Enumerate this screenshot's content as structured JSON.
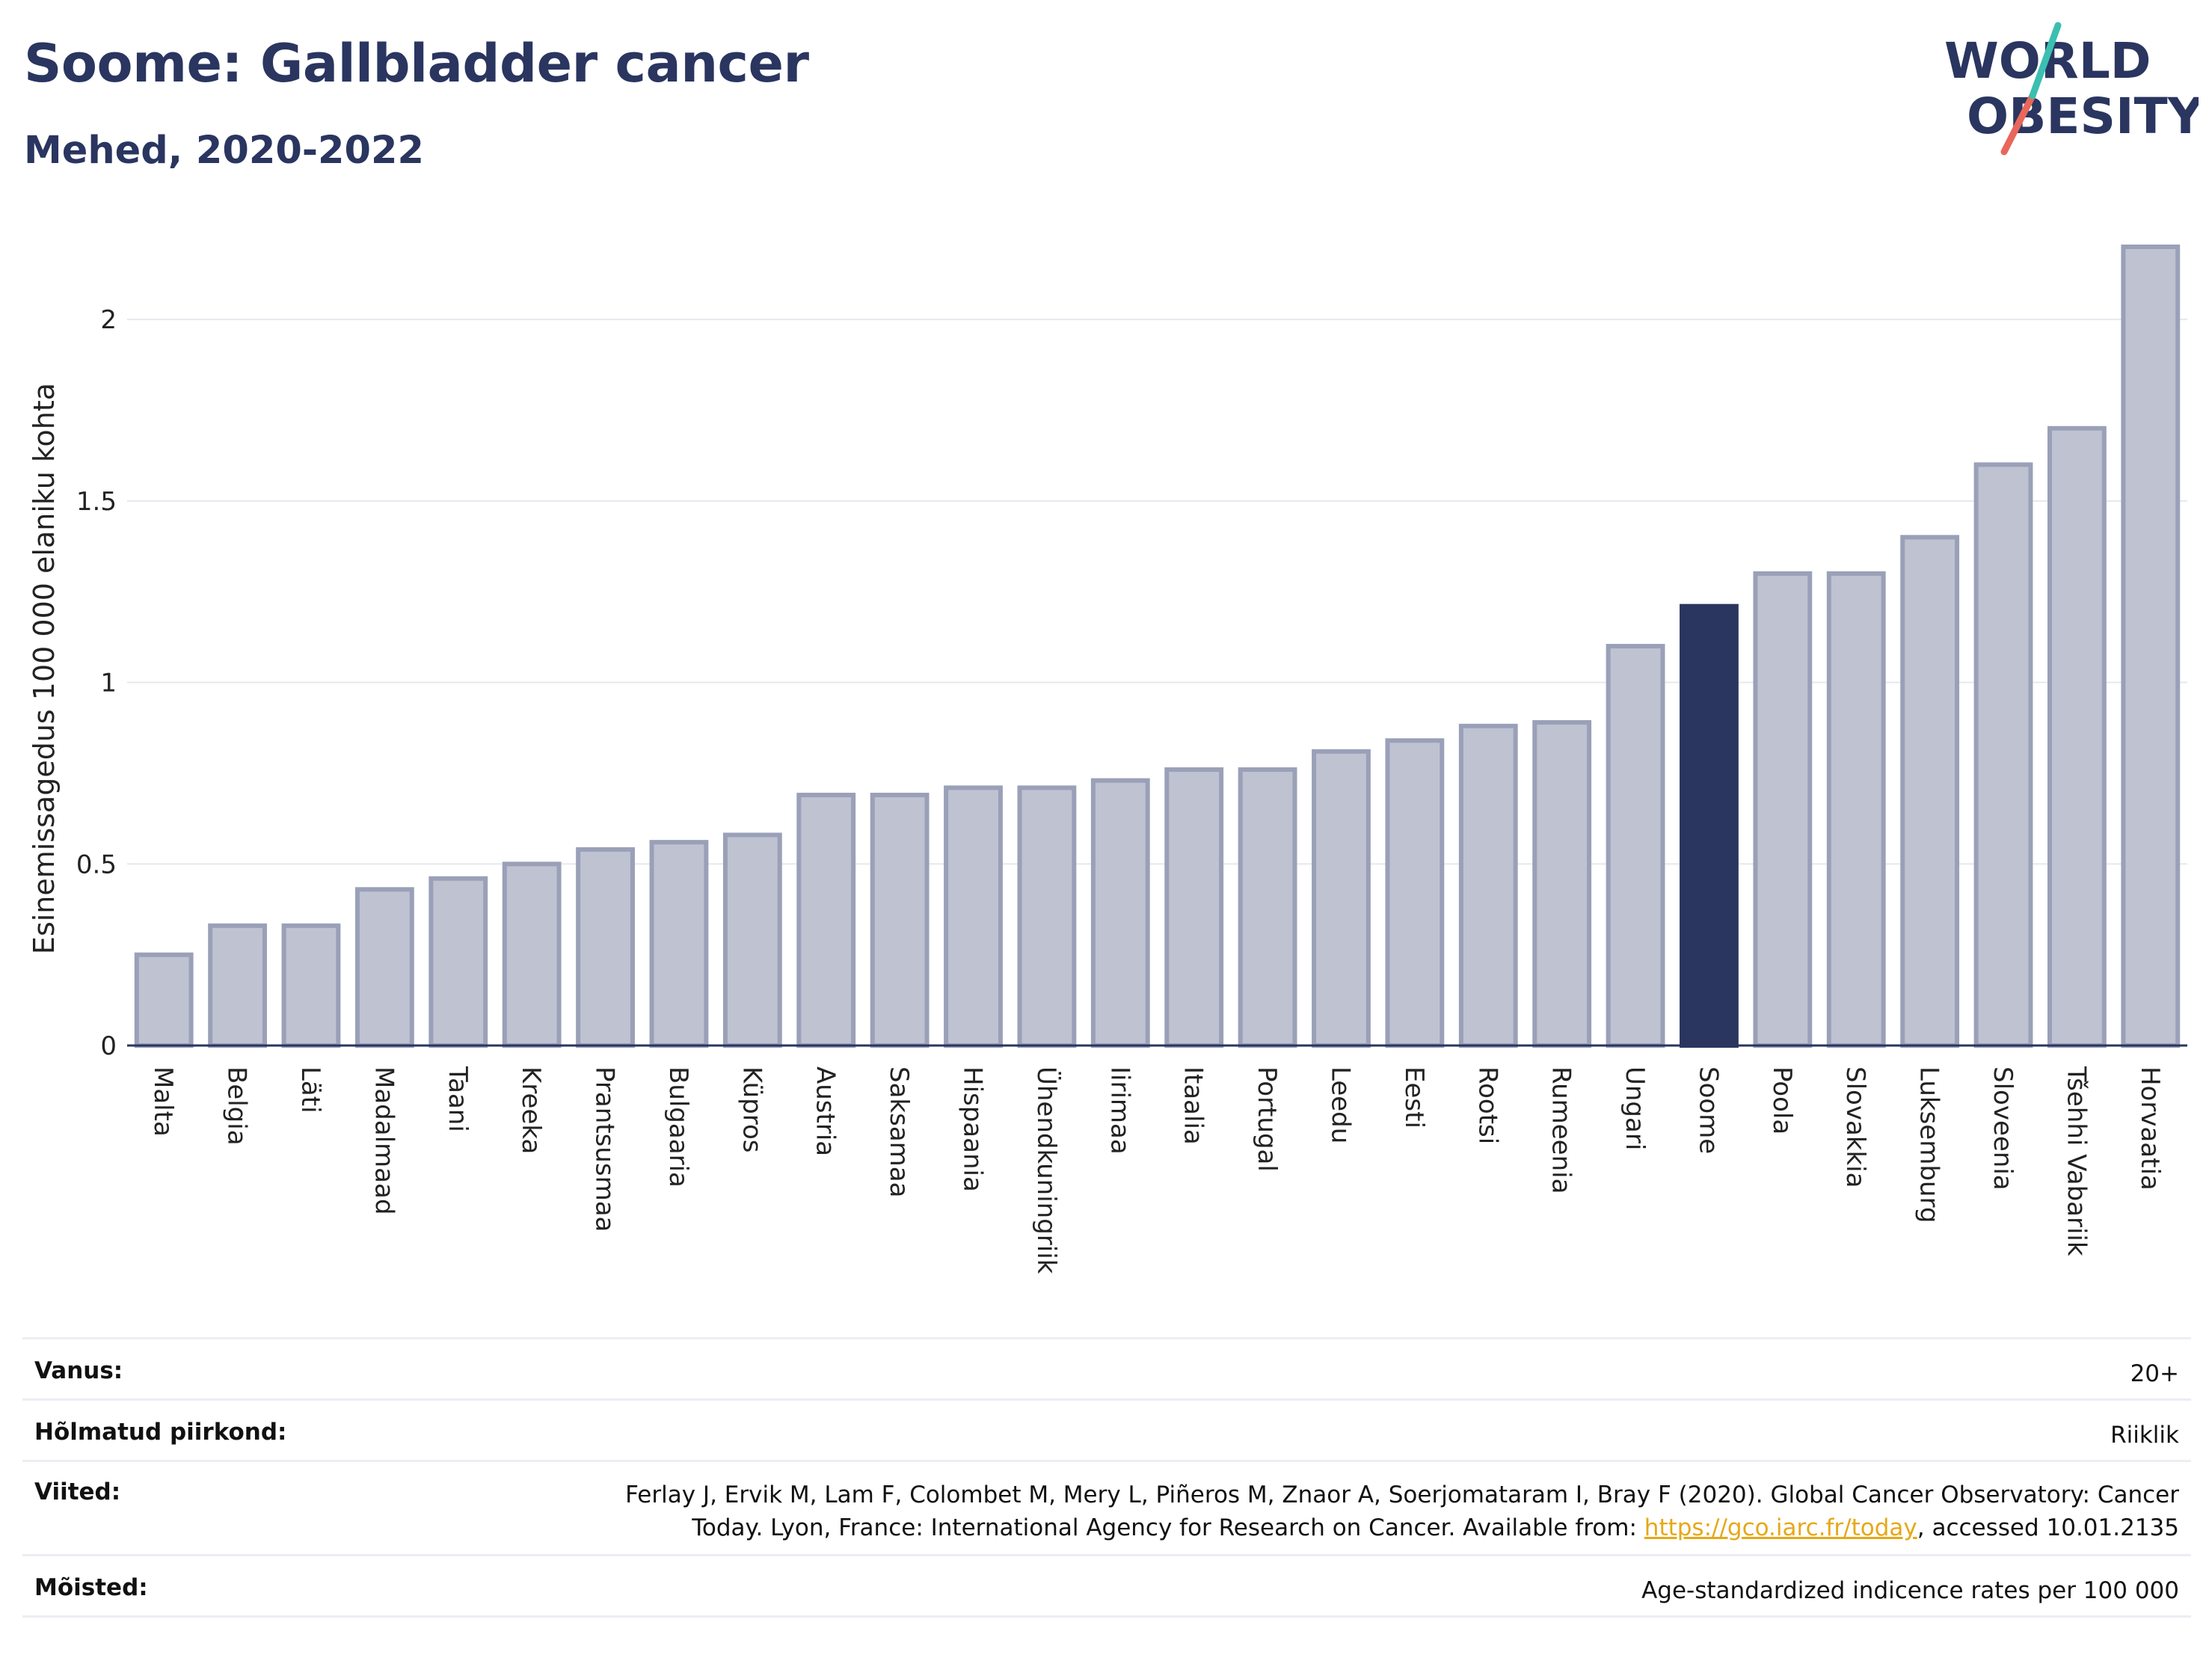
{
  "header": {
    "title": "Soome: Gallbladder cancer",
    "subtitle": "Mehed, 2020-2022"
  },
  "logo": {
    "line1": "WORLD",
    "line2": "OBESITY"
  },
  "colors": {
    "bar_default": "#bfc2d0",
    "bar_border": "#9aa0b8",
    "bar_highlight": "#2a3560",
    "title": "#2a3560",
    "link": "#e6a817"
  },
  "chart_data": {
    "type": "bar",
    "ylabel": "Esinemissagedus 100 000 elaniku kohta",
    "xlabel": "",
    "ylim": [
      0,
      2.2
    ],
    "yticks": [
      0,
      0.5,
      1,
      1.5,
      2
    ],
    "ytick_labels": [
      "0",
      "0.5",
      "1",
      "1.5",
      "2"
    ],
    "grid": true,
    "highlight": "Soome",
    "categories": [
      "Malta",
      "Belgia",
      "Läti",
      "Madalmaad",
      "Taani",
      "Kreeka",
      "Prantsusmaa",
      "Bulgaaria",
      "Küpros",
      "Austria",
      "Saksamaa",
      "Hispaania",
      "Ühendkuningriik",
      "Iirimaa",
      "Itaalia",
      "Portugal",
      "Leedu",
      "Eesti",
      "Rootsi",
      "Rumeenia",
      "Ungari",
      "Soome",
      "Poola",
      "Slovakkia",
      "Luksemburg",
      "Sloveenia",
      "Tšehhi Vabariik",
      "Horvaatia"
    ],
    "values": [
      0.25,
      0.33,
      0.33,
      0.43,
      0.46,
      0.5,
      0.54,
      0.56,
      0.58,
      0.69,
      0.69,
      0.71,
      0.71,
      0.73,
      0.76,
      0.76,
      0.81,
      0.84,
      0.88,
      0.89,
      1.1,
      1.21,
      1.3,
      1.3,
      1.4,
      1.6,
      1.7,
      2.2
    ]
  },
  "metadata": {
    "age_label": "Vanus:",
    "age_value": "20+",
    "region_label": "Hõlmatud piirkond:",
    "region_value": "Riiklik",
    "refs_label": "Viited:",
    "refs_line1": "Ferlay J, Ervik M, Lam F, Colombet M, Mery L, Piñeros M, Znaor A, Soerjomataram I, Bray F (2020). Global Cancer Observatory: Cancer",
    "refs_line2_pre": "Today. Lyon, France: International Agency for Research on Cancer. Available from: ",
    "refs_link": "https://gco.iarc.fr/today",
    "refs_line2_post": ", accessed 10.01.2135",
    "defs_label": "Mõisted:",
    "defs_value": "Age-standardized indicence rates per 100 000"
  }
}
